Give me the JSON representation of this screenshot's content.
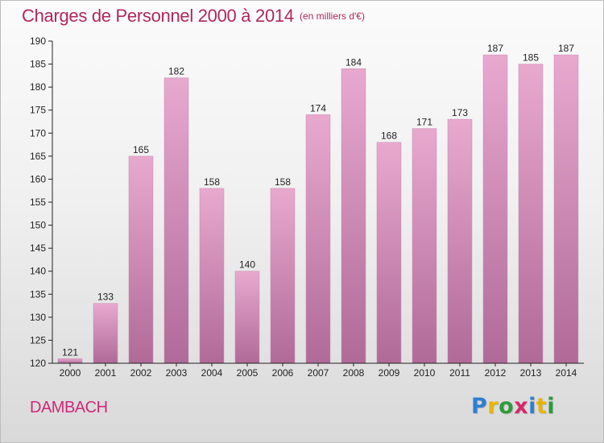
{
  "chart_data": {
    "type": "bar",
    "title": "Charges de Personnel 2000 à 2014",
    "subtitle": "(en milliers d'€)",
    "categories": [
      "2000",
      "2001",
      "2002",
      "2003",
      "2004",
      "2005",
      "2006",
      "2007",
      "2008",
      "2009",
      "2010",
      "2011",
      "2012",
      "2013",
      "2014"
    ],
    "values": [
      121,
      133,
      165,
      182,
      158,
      140,
      158,
      174,
      184,
      168,
      171,
      173,
      187,
      185,
      187
    ],
    "ylim": [
      120,
      190
    ],
    "yticks": [
      120,
      125,
      130,
      135,
      140,
      145,
      150,
      155,
      160,
      165,
      170,
      175,
      180,
      185,
      190
    ],
    "grid": false,
    "bar_color_top": "#e8a9cf",
    "bar_color_bottom": "#b06a98",
    "axis_color": "#222222",
    "label_color": "#222222"
  },
  "footer": {
    "location": "DAMBACH",
    "location_color": "#d0287a"
  },
  "logo": {
    "letters": [
      {
        "char": "P",
        "color": "#2f7fd0"
      },
      {
        "char": "r",
        "color": "#e8b400"
      },
      {
        "char": "o",
        "color": "#2f9a3a"
      },
      {
        "char": "x",
        "color": "#d42a6a"
      },
      {
        "char": "i",
        "color": "#2f7fd0"
      },
      {
        "char": "t",
        "color": "#e8b400"
      },
      {
        "char": "i",
        "color": "#2f9a3a"
      }
    ]
  }
}
